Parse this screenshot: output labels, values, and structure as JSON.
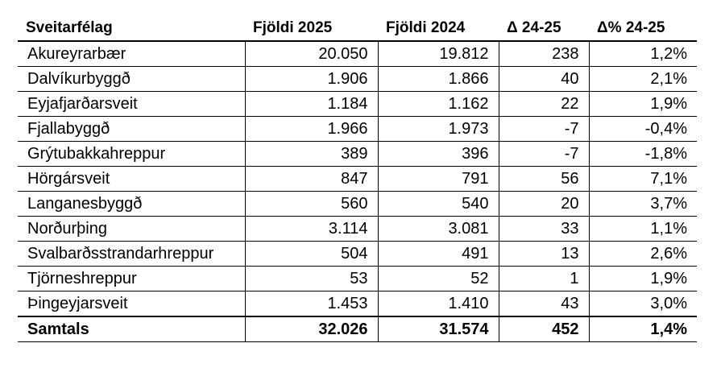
{
  "table": {
    "headers": [
      "Sveitarfélag",
      "Fjöldi 2025",
      "Fjöldi 2024",
      "Δ 24-25",
      "Δ% 24-25"
    ],
    "rows": [
      [
        "Akureyrarbær",
        "20.050",
        "19.812",
        "238",
        "1,2%"
      ],
      [
        "Dalvíkurbyggð",
        "1.906",
        "1.866",
        "40",
        "2,1%"
      ],
      [
        "Eyjafjarðarsveit",
        "1.184",
        "1.162",
        "22",
        "1,9%"
      ],
      [
        "Fjallabyggð",
        "1.966",
        "1.973",
        "-7",
        "-0,4%"
      ],
      [
        "Grýtubakkahreppur",
        "389",
        "396",
        "-7",
        "-1,8%"
      ],
      [
        "Hörgársveit",
        "847",
        "791",
        "56",
        "7,1%"
      ],
      [
        "Langanesbyggð",
        "560",
        "540",
        "20",
        "3,7%"
      ],
      [
        "Norðurþing",
        "3.114",
        "3.081",
        "33",
        "1,1%"
      ],
      [
        "Svalbarðsstrandarhreppur",
        "504",
        "491",
        "13",
        "2,6%"
      ],
      [
        "Tjörneshreppur",
        "53",
        "52",
        "1",
        "1,9%"
      ],
      [
        "Þingeyjarsveit",
        "1.453",
        "1.410",
        "43",
        "3,0%"
      ]
    ],
    "total": [
      "Samtals",
      "32.026",
      "31.574",
      "452",
      "1,4%"
    ]
  }
}
